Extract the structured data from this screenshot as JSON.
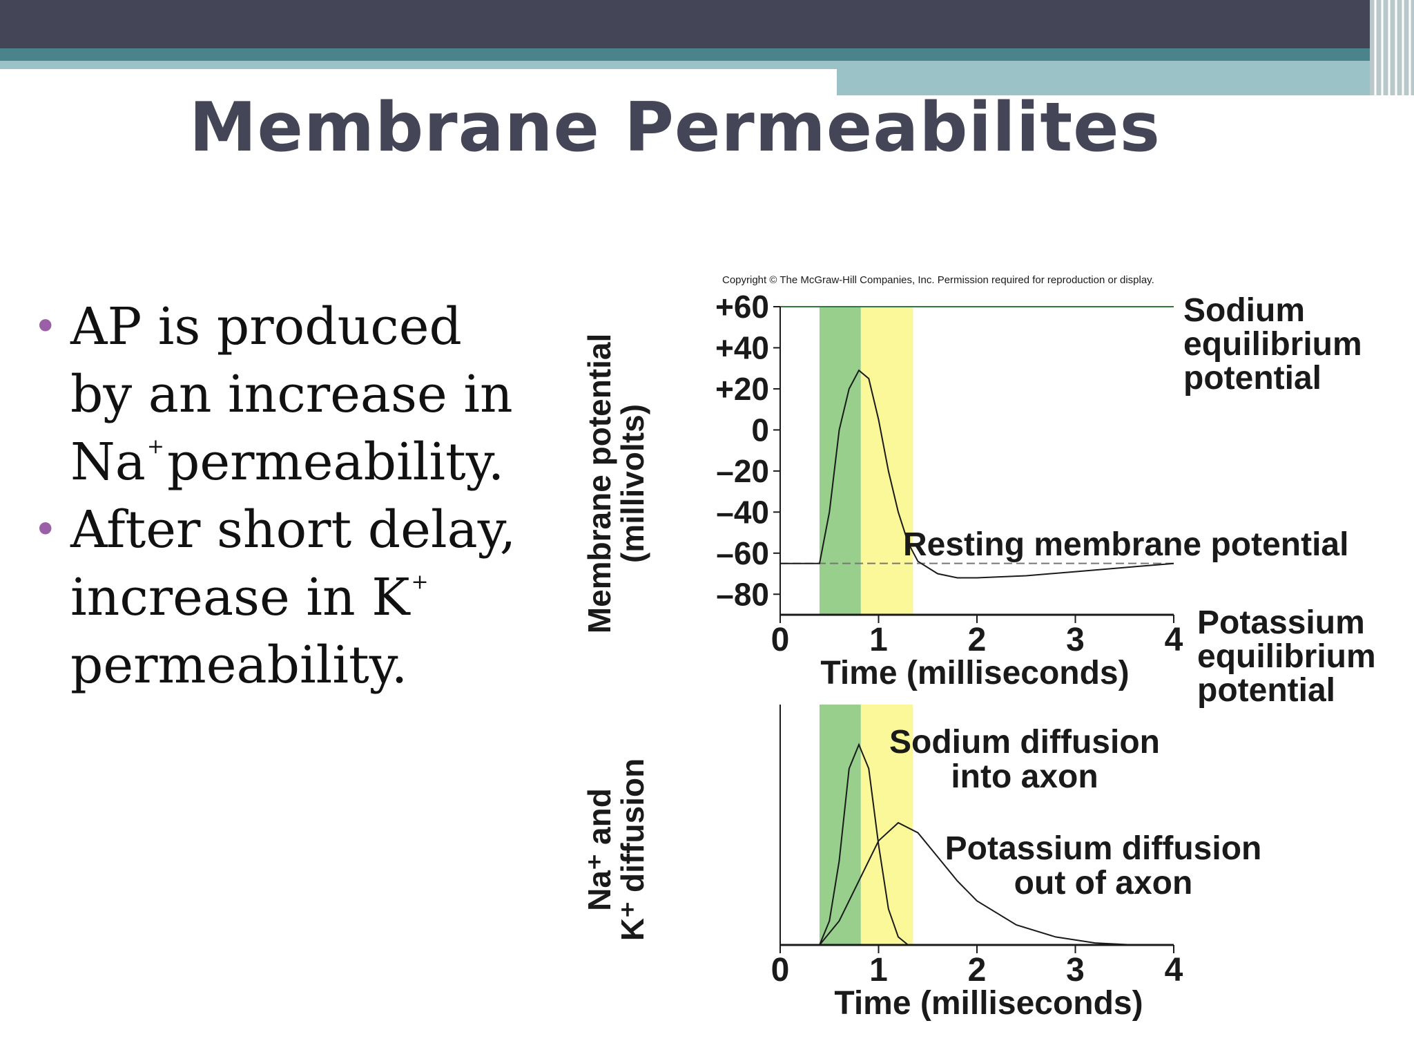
{
  "slide": {
    "title": "Membrane Permeabilites",
    "colors": {
      "header_dark": "#454558",
      "header_teal": "#4a8389",
      "header_teal_light": "#9bc2c6",
      "bullet": "#9b5fa8",
      "na_phase": "#98cf8c",
      "k_phase": "#fbf89a",
      "equilibrium_line": "#2c7a3a"
    },
    "bullets": [
      {
        "lines": [
          {
            "text": "AP is produced"
          },
          {
            "text": "by an increase in"
          },
          {
            "text": "Na",
            "sup": "+",
            "tail": "permeability."
          }
        ]
      },
      {
        "lines": [
          {
            "text": "After short delay,"
          },
          {
            "text": "increase in K",
            "sup": "+",
            "tail": ""
          },
          {
            "text": "permeability."
          }
        ]
      }
    ]
  },
  "figure": {
    "copyright": "Copyright © The McGraw-Hill Companies, Inc. Permission required for reproduction or display."
  },
  "chart_data": [
    {
      "type": "line",
      "ylabel_line1": "Membrane potential",
      "ylabel_line2": "(millivolts)",
      "xlabel": "Time (milliseconds)",
      "xticks": [
        "0",
        "1",
        "2",
        "3",
        "4"
      ],
      "yticks": [
        "+60",
        "+40",
        "+20",
        "0",
        "–20",
        "–40",
        "–60",
        "–80"
      ],
      "xlim": [
        0,
        4
      ],
      "ylim": [
        -90,
        60
      ],
      "shaded_regions": [
        {
          "phase": "sodium",
          "x": [
            0.4,
            0.82
          ],
          "color": "#98cf8c"
        },
        {
          "phase": "potassium",
          "x": [
            0.82,
            1.35
          ],
          "color": "#fbf89a"
        }
      ],
      "reference_lines": [
        {
          "label_lines": [
            "Sodium",
            "equilibrium",
            "potential"
          ],
          "y": 60
        },
        {
          "label_lines": [
            "Resting membrane potential"
          ],
          "y": -65,
          "style": "dashed"
        },
        {
          "label_lines": [
            "Potassium",
            "equilibrium",
            "potential"
          ],
          "y": -90
        }
      ],
      "series": [
        {
          "x": [
            0,
            0.4,
            0.5,
            0.6,
            0.7,
            0.8,
            0.9,
            1.0,
            1.1,
            1.2,
            1.3,
            1.4,
            1.6,
            1.8,
            2.0,
            2.5,
            3.0,
            3.5,
            4.0
          ],
          "y": [
            -65,
            -65,
            -40,
            0,
            20,
            29,
            25,
            5,
            -20,
            -40,
            -55,
            -64,
            -70,
            -72,
            -72,
            -71,
            -69,
            -67,
            -65
          ]
        }
      ]
    },
    {
      "type": "line",
      "ylabel_line1": "Na⁺ and",
      "ylabel_line2": "K⁺ diffusion",
      "xlabel": "Time (milliseconds)",
      "xticks": [
        "0",
        "1",
        "2",
        "3",
        "4"
      ],
      "xlim": [
        0,
        4
      ],
      "ylim": [
        0,
        1.2
      ],
      "shaded_regions": [
        {
          "phase": "sodium",
          "x": [
            0.4,
            0.82
          ],
          "color": "#98cf8c"
        },
        {
          "phase": "potassium",
          "x": [
            0.82,
            1.35
          ],
          "color": "#fbf89a"
        }
      ],
      "annotations": [
        {
          "label_lines": [
            "Sodium diffusion",
            "into axon"
          ]
        },
        {
          "label_lines": [
            "Potassium diffusion",
            "out of axon"
          ]
        }
      ],
      "series": [
        {
          "x": [
            0,
            0.4,
            0.5,
            0.6,
            0.7,
            0.8,
            0.9,
            1.0,
            1.1,
            1.2,
            1.3,
            1.4
          ],
          "y": [
            0,
            0,
            0.12,
            0.42,
            0.88,
            1.0,
            0.88,
            0.5,
            0.18,
            0.04,
            0.0,
            0
          ]
        },
        {
          "x": [
            0,
            0.4,
            0.6,
            0.8,
            1.0,
            1.2,
            1.4,
            1.6,
            1.8,
            2.0,
            2.4,
            2.8,
            3.2,
            3.6,
            4.0
          ],
          "y": [
            0,
            0,
            0.12,
            0.32,
            0.52,
            0.61,
            0.56,
            0.44,
            0.32,
            0.22,
            0.1,
            0.04,
            0.01,
            0,
            0
          ]
        }
      ]
    }
  ]
}
